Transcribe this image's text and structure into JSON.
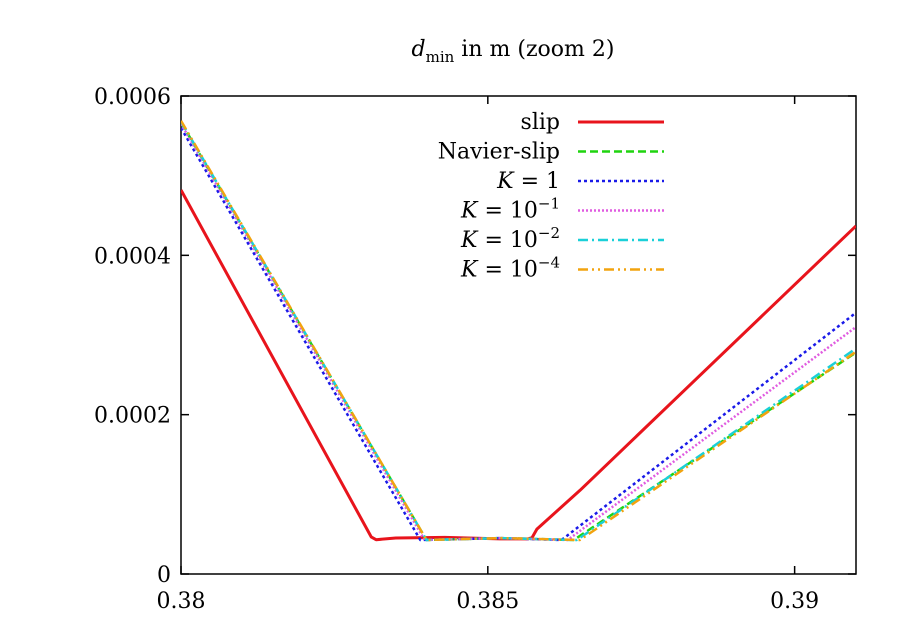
{
  "chart_data": {
    "type": "line",
    "title": {
      "var": "d",
      "sub": "min",
      "rest": " in m (zoom 2)"
    },
    "xlim": [
      0.38,
      0.391
    ],
    "ylim": [
      0,
      0.0006
    ],
    "xticks": [
      {
        "value": 0.38,
        "label": "0.38"
      },
      {
        "value": 0.385,
        "label": "0.385"
      },
      {
        "value": 0.39,
        "label": "0.39"
      }
    ],
    "yticks": [
      {
        "value": 0,
        "label": "0"
      },
      {
        "value": 0.0002,
        "label": "0.0002"
      },
      {
        "value": 0.0004,
        "label": "0.0004"
      },
      {
        "value": 0.0006,
        "label": "0.0006"
      }
    ],
    "legend_position": "top-right",
    "series": [
      {
        "name": "slip",
        "label_parts": {
          "text": "slip"
        },
        "color": "#e8141c",
        "dash": "",
        "width": 3,
        "points": [
          [
            0.38,
            0.000482
          ],
          [
            0.3831,
            4.66e-05
          ],
          [
            0.38318,
            4.31e-05
          ],
          [
            0.3835,
            4.52e-05
          ],
          [
            0.3843,
            4.59e-05
          ],
          [
            0.3852,
            4.41e-05
          ],
          [
            0.38565,
            4.41e-05
          ],
          [
            0.38572,
            4.56e-05
          ],
          [
            0.3858,
            5.63e-05
          ],
          [
            0.3865,
            0.000105
          ],
          [
            0.391,
            0.000437
          ]
        ]
      },
      {
        "name": "Navier-slip",
        "label_parts": {
          "text": "Navier-slip"
        },
        "color": "#1fd40f",
        "dash": "8,4",
        "width": 2.5,
        "points": [
          [
            0.38,
            0.000567
          ],
          [
            0.384,
            4.27e-05
          ],
          [
            0.3852,
            4.51e-05
          ],
          [
            0.3864,
            4.27e-05
          ],
          [
            0.391,
            0.000278
          ]
        ]
      },
      {
        "name": "K = 1",
        "label_parts": {
          "var": "K",
          "eq": " = 1",
          "base": "",
          "exp": ""
        },
        "color": "#1a1ae8",
        "dash": "3,3",
        "width": 2.5,
        "points": [
          [
            0.38,
            0.00056
          ],
          [
            0.3839,
            4.27e-05
          ],
          [
            0.3852,
            4.51e-05
          ],
          [
            0.3862,
            4.27e-05
          ],
          [
            0.391,
            0.000328
          ]
        ]
      },
      {
        "name": "K = 10^-1",
        "label_parts": {
          "var": "K",
          "eq": " = ",
          "base": "10",
          "exp": "−1"
        },
        "color": "#e05ce0",
        "dash": "2,2",
        "width": 2.5,
        "points": [
          [
            0.38,
            0.000565
          ],
          [
            0.38397,
            4.27e-05
          ],
          [
            0.3852,
            4.51e-05
          ],
          [
            0.3863,
            4.27e-05
          ],
          [
            0.391,
            0.00031
          ]
        ]
      },
      {
        "name": "K = 10^-2",
        "label_parts": {
          "var": "K",
          "eq": " = ",
          "base": "10",
          "exp": "−2"
        },
        "color": "#1ad0d8",
        "dash": "10,4,2,4",
        "width": 2.5,
        "points": [
          [
            0.38,
            0.000568
          ],
          [
            0.384,
            4.27e-05
          ],
          [
            0.3852,
            4.51e-05
          ],
          [
            0.38645,
            4.27e-05
          ],
          [
            0.391,
            0.000283
          ]
        ]
      },
      {
        "name": "K = 10^-4",
        "label_parts": {
          "var": "K",
          "eq": " = ",
          "base": "10",
          "exp": "−4"
        },
        "color": "#f2a30f",
        "dash": "10,4,2,4,2,4",
        "width": 2.5,
        "points": [
          [
            0.38,
            0.000569
          ],
          [
            0.384,
            4.27e-05
          ],
          [
            0.3852,
            4.51e-05
          ],
          [
            0.3865,
            4.27e-05
          ],
          [
            0.391,
            0.000279
          ]
        ]
      }
    ]
  }
}
